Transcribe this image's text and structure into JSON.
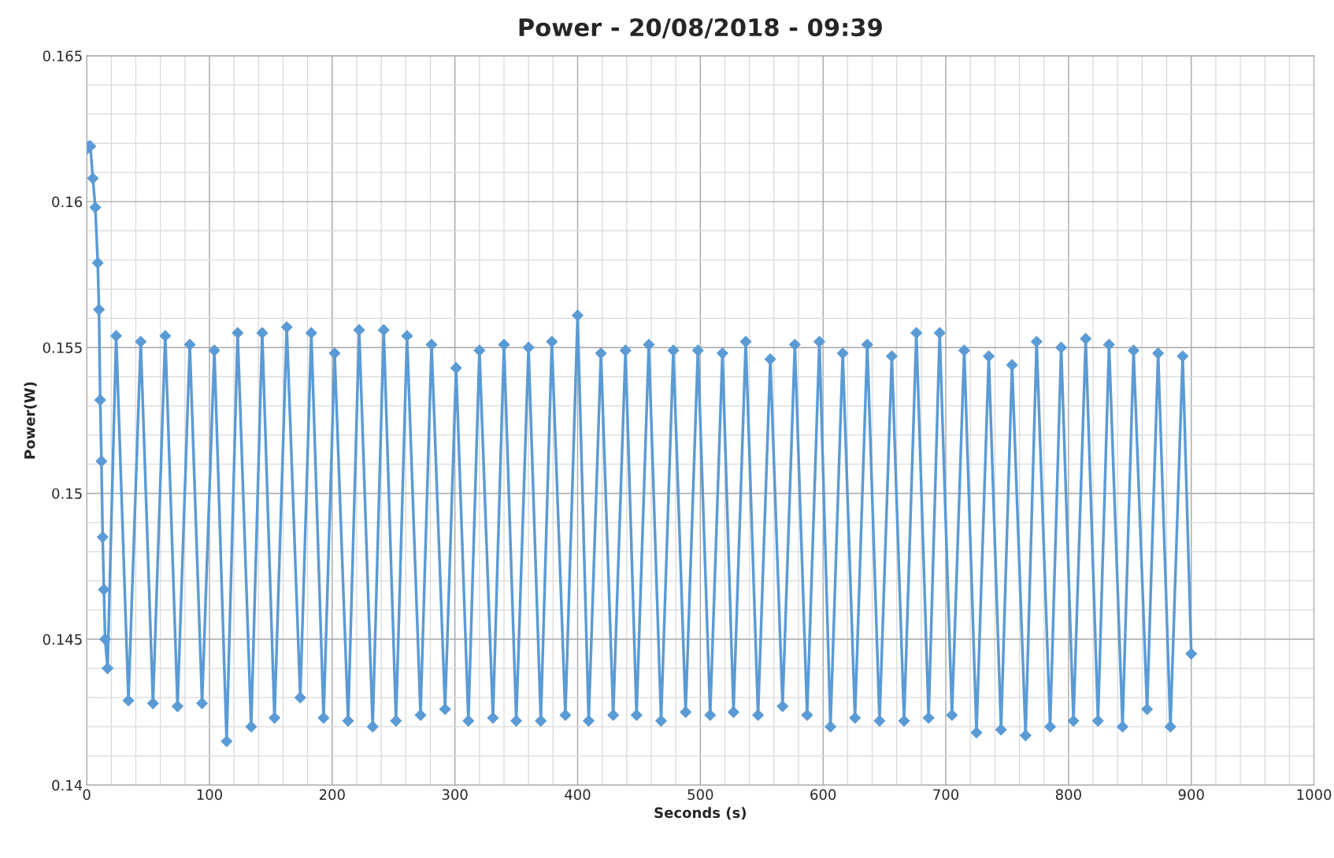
{
  "chart_data": {
    "type": "line",
    "title": "Power - 20/08/2018 - 09:39",
    "xlabel": "Seconds (s)",
    "ylabel": "Power(W)",
    "x": [
      0,
      2,
      3,
      5,
      7,
      9,
      10,
      11,
      12,
      13,
      14,
      15,
      17,
      24,
      34,
      44,
      54,
      64,
      74,
      84,
      94,
      104,
      114,
      123,
      134,
      143,
      153,
      163,
      174,
      183,
      193,
      202,
      213,
      222,
      233,
      242,
      252,
      261,
      272,
      281,
      292,
      301,
      311,
      320,
      331,
      340,
      350,
      360,
      370,
      379,
      390,
      400,
      409,
      419,
      429,
      439,
      448,
      458,
      468,
      478,
      488,
      498,
      508,
      518,
      527,
      537,
      547,
      557,
      567,
      577,
      587,
      597,
      606,
      616,
      626,
      636,
      646,
      656,
      666,
      676,
      686,
      695,
      705,
      715,
      725,
      735,
      745,
      754,
      765,
      774,
      785,
      794,
      804,
      814,
      824,
      833,
      844,
      853,
      864,
      873,
      883,
      893,
      900
    ],
    "series": [
      {
        "color": "#5b9bd5",
        "values": [
          0.1618,
          0.1619,
          0.1619,
          0.1608,
          0.1598,
          0.1579,
          0.1563,
          0.1532,
          0.1511,
          0.1485,
          0.1467,
          0.145,
          0.144,
          0.1554,
          0.1429,
          0.1552,
          0.1428,
          0.1554,
          0.1427,
          0.1551,
          0.1428,
          0.1549,
          0.1415,
          0.1555,
          0.142,
          0.1555,
          0.1423,
          0.1557,
          0.143,
          0.1555,
          0.1423,
          0.1548,
          0.1422,
          0.1556,
          0.142,
          0.1556,
          0.1422,
          0.1554,
          0.1424,
          0.1551,
          0.1426,
          0.1543,
          0.1422,
          0.1549,
          0.1423,
          0.1551,
          0.1422,
          0.155,
          0.1422,
          0.1552,
          0.1424,
          0.1561,
          0.1422,
          0.1548,
          0.1424,
          0.1549,
          0.1424,
          0.1551,
          0.1422,
          0.1549,
          0.1425,
          0.1549,
          0.1424,
          0.1548,
          0.1425,
          0.1552,
          0.1424,
          0.1546,
          0.1427,
          0.1551,
          0.1424,
          0.1552,
          0.142,
          0.1548,
          0.1423,
          0.1551,
          0.1422,
          0.1547,
          0.1422,
          0.1555,
          0.1423,
          0.1555,
          0.1424,
          0.1549,
          0.1418,
          0.1547,
          0.1419,
          0.1544,
          0.1417,
          0.1552,
          0.142,
          0.155,
          0.1422,
          0.1553,
          0.1422,
          0.1551,
          0.142,
          0.1549,
          0.1426,
          0.1548,
          0.142,
          0.1547,
          0.1445
        ]
      }
    ],
    "xlim": [
      0,
      1000
    ],
    "xticks": [
      0,
      100,
      200,
      300,
      400,
      500,
      600,
      700,
      800,
      900,
      1000
    ],
    "ylim": [
      0.14,
      0.165
    ],
    "yticks": [
      0.14,
      0.145,
      0.15,
      0.155,
      0.16,
      0.165
    ],
    "grid": true,
    "marker": "diamond",
    "line_style": "solid",
    "legend": false
  }
}
